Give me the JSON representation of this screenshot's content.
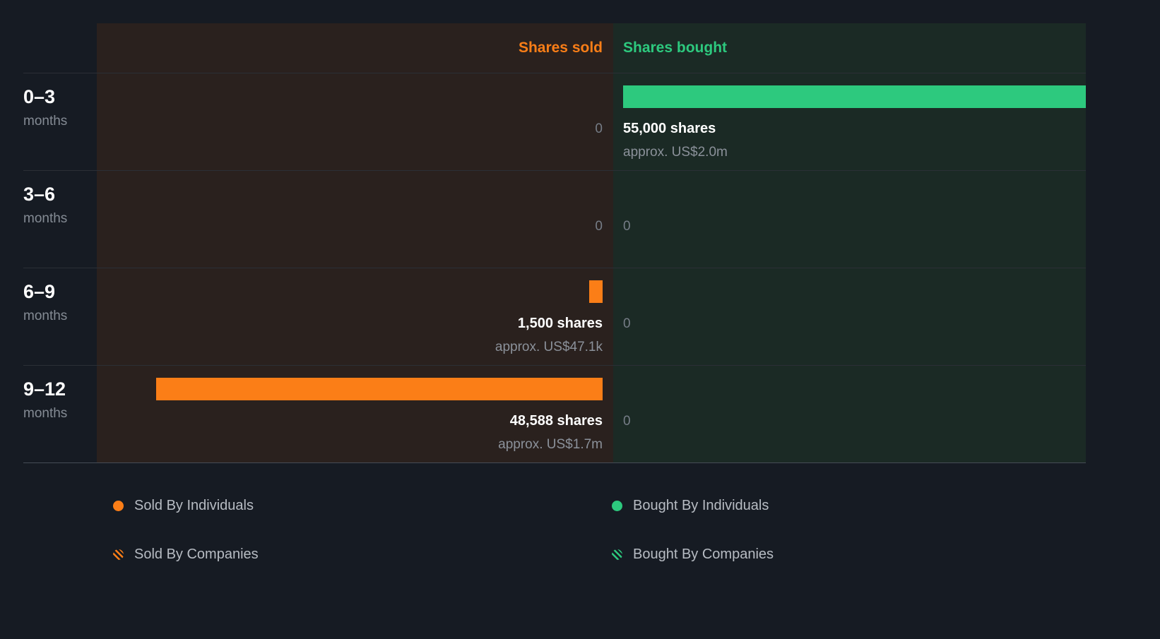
{
  "chart_data": {
    "type": "bar",
    "orientation": "horizontal-diverging",
    "categories": [
      "0–3 months",
      "3–6 months",
      "6–9 months",
      "9–12 months"
    ],
    "scale_max": 55000,
    "series": [
      {
        "name": "Shares sold",
        "color": "#fb7e17",
        "values": [
          0,
          0,
          1500,
          48588
        ],
        "approx_values": [
          "",
          "",
          "US$47.1k",
          "US$1.7m"
        ]
      },
      {
        "name": "Shares bought",
        "color": "#2dc97e",
        "values": [
          55000,
          0,
          0,
          0
        ],
        "approx_values": [
          "US$2.0m",
          "",
          "",
          ""
        ]
      }
    ],
    "title": "",
    "xlabel": "",
    "ylabel": "",
    "grid": "horizontal-row-separators",
    "legend_position": "bottom"
  },
  "header": {
    "sold": "Shares sold",
    "bought": "Shares bought"
  },
  "rows": [
    {
      "period": "0–3",
      "unit": "months",
      "sold": {
        "zero": "0",
        "shares": "",
        "approx": "",
        "pct": 0
      },
      "bought": {
        "zero": "",
        "shares": "55,000 shares",
        "approx": "approx. US$2.0m",
        "pct": 100
      }
    },
    {
      "period": "3–6",
      "unit": "months",
      "sold": {
        "zero": "0",
        "shares": "",
        "approx": "",
        "pct": 0
      },
      "bought": {
        "zero": "0",
        "shares": "",
        "approx": "",
        "pct": 0
      }
    },
    {
      "period": "6–9",
      "unit": "months",
      "sold": {
        "zero": "",
        "shares": "1,500 shares",
        "approx": "approx. US$47.1k",
        "pct": 2.7
      },
      "bought": {
        "zero": "0",
        "shares": "",
        "approx": "",
        "pct": 0
      }
    },
    {
      "period": "9–12",
      "unit": "months",
      "sold": {
        "zero": "",
        "shares": "48,588 shares",
        "approx": "approx. US$1.7m",
        "pct": 88.3
      },
      "bought": {
        "zero": "0",
        "shares": "",
        "approx": "",
        "pct": 0
      }
    }
  ],
  "legend": {
    "sold_individuals": "Sold By Individuals",
    "sold_companies": "Sold By Companies",
    "bought_individuals": "Bought By Individuals",
    "bought_companies": "Bought By Companies"
  },
  "colors": {
    "sold": "#fb7e17",
    "bought": "#2dc97e",
    "background": "#161b23",
    "sold_panel": "#2a211e",
    "bought_panel": "#1b2a25"
  }
}
